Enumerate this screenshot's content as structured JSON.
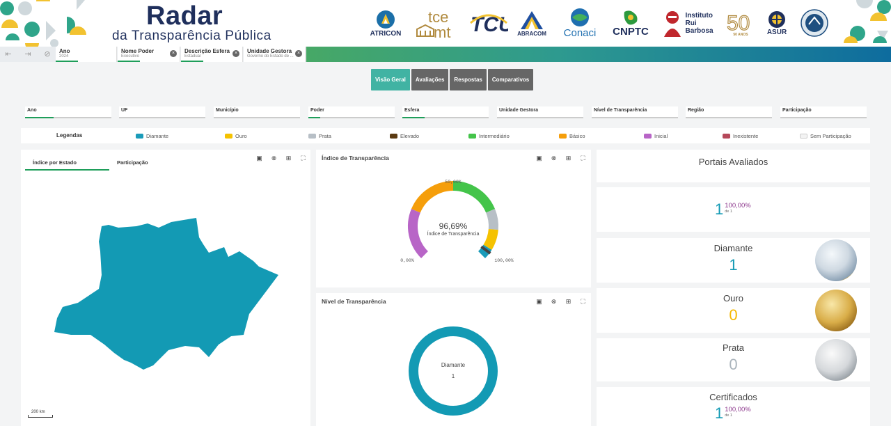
{
  "header": {
    "logo_title": "Radar",
    "logo_subtitle": "da Transparência Pública",
    "partners": [
      {
        "name": "ATRICON",
        "icon": "atricon-logo-icon",
        "color": "#1f2f5c"
      },
      {
        "name": "tce mt",
        "icon": "tce-mt-logo-icon",
        "color": "#b08a3e"
      },
      {
        "name": "TCU",
        "icon": "tcu-logo-icon",
        "color": "#1f2f5c"
      },
      {
        "name": "ABRACOM",
        "icon": "abracom-logo-icon",
        "color": "#1f2f5c"
      },
      {
        "name": "Conaci",
        "icon": "conaci-logo-icon",
        "color": "#1f6fb0"
      },
      {
        "name": "CNPTC",
        "icon": "cnptc-logo-icon",
        "color": "#1f2f5c"
      },
      {
        "name": "Instituto Rui Barbosa",
        "icon": "irb-logo-icon",
        "color": "#c0272d"
      },
      {
        "name": "50 ANOS",
        "icon": "fifty-years-icon",
        "color": "#b08a3e"
      },
      {
        "name": "ASUR",
        "icon": "asur-logo-icon",
        "color": "#1f2f5c"
      },
      {
        "name": "",
        "icon": "audicon-logo-icon",
        "color": "#1f2f5c"
      }
    ]
  },
  "filterbar": {
    "chips": [
      {
        "label": "Ano",
        "value": "2024"
      },
      {
        "label": "Nome Poder",
        "value": "Executivo"
      },
      {
        "label": "Descrição Esfera",
        "value": "Estadual"
      },
      {
        "label": "Unidade Gestora",
        "value": "Governo do Estado de ..."
      }
    ]
  },
  "tabs": [
    {
      "label": "Visão Geral",
      "active": true
    },
    {
      "label": "Avaliações",
      "active": false
    },
    {
      "label": "Respostas",
      "active": false
    },
    {
      "label": "Comparativos",
      "active": false
    }
  ],
  "filters": [
    {
      "label": "Ano",
      "fill": 0.33
    },
    {
      "label": "UF",
      "fill": 0
    },
    {
      "label": "Município",
      "fill": 0
    },
    {
      "label": "Poder",
      "fill": 0.14
    },
    {
      "label": "Esfera",
      "fill": 0.26
    },
    {
      "label": "Unidade Gestora",
      "fill": 0
    },
    {
      "label": "Nível de Transparência",
      "fill": 0
    },
    {
      "label": "Região",
      "fill": 0
    },
    {
      "label": "Participação",
      "fill": 0
    }
  ],
  "legend": {
    "title": "Legendas",
    "items": [
      {
        "label": "Diamante",
        "color": "#1a9bb9"
      },
      {
        "label": "Ouro",
        "color": "#f5c200"
      },
      {
        "label": "Prata",
        "color": "#b7bfc6"
      },
      {
        "label": "Elevado",
        "color": "#5a3a12"
      },
      {
        "label": "Intermediário",
        "color": "#44c44a"
      },
      {
        "label": "Básico",
        "color": "#f59e0b"
      },
      {
        "label": "Inicial",
        "color": "#b865c7"
      },
      {
        "label": "Inexistente",
        "color": "#b5485a"
      },
      {
        "label": "Sem Participação",
        "color": "#f3f3f3"
      }
    ]
  },
  "map_card": {
    "tabs": [
      "Índice por Estado",
      "Participação"
    ],
    "scale": "200 km",
    "color": "#139ab4"
  },
  "gauge_card": {
    "title": "Índice de Transparência",
    "value": "96,69%",
    "value_label": "Índice de Transparência",
    "value_number": 96.69,
    "min_label": "0,00%",
    "mid_label": "50,00%",
    "max_label": "100,00%"
  },
  "donut_card": {
    "title": "Nível de Transparência",
    "center_label": "Diamante",
    "center_value": "1"
  },
  "stats": {
    "portais": {
      "title": "Portais Avaliados"
    },
    "total": {
      "value": "1",
      "percent": "100,00%",
      "of": "de 1"
    },
    "diamante": {
      "title": "Diamante",
      "value": "1",
      "color": "#139ab4"
    },
    "ouro": {
      "title": "Ouro",
      "value": "0",
      "color": "#f5b800"
    },
    "prata": {
      "title": "Prata",
      "value": "0",
      "color": "#aab4bc"
    },
    "certificados": {
      "title": "Certificados",
      "value": "1",
      "percent": "100,00%",
      "of": "de 1"
    }
  },
  "colors": {
    "accent": "#41b3a3",
    "number_blue": "#139ab4",
    "percent_purple": "#8e3a8e"
  }
}
